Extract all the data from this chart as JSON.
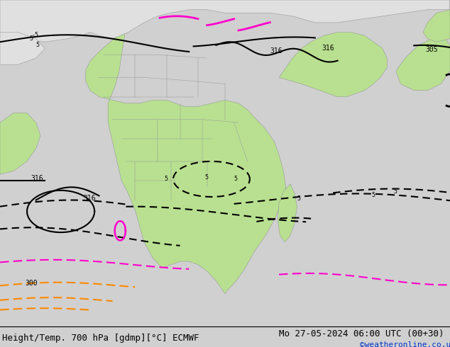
{
  "title_left": "Height/Temp. 700 hPa [gdmp][°C] ECMWF",
  "title_right": "Mo 27-05-2024 06:00 UTC (00+30)",
  "credit": "©weatheronline.co.uk",
  "bg_ocean": "#d0d0d0",
  "bg_land_green": "#b8e090",
  "bg_land_gray": "#e0e0e0",
  "border_color": "#999999",
  "black": "#000000",
  "magenta": "#ff00cc",
  "orange": "#ff8800",
  "blue_credit": "#0033cc",
  "font_size": 9,
  "dpi": 100,
  "fig_w": 6.34,
  "fig_h": 4.9
}
